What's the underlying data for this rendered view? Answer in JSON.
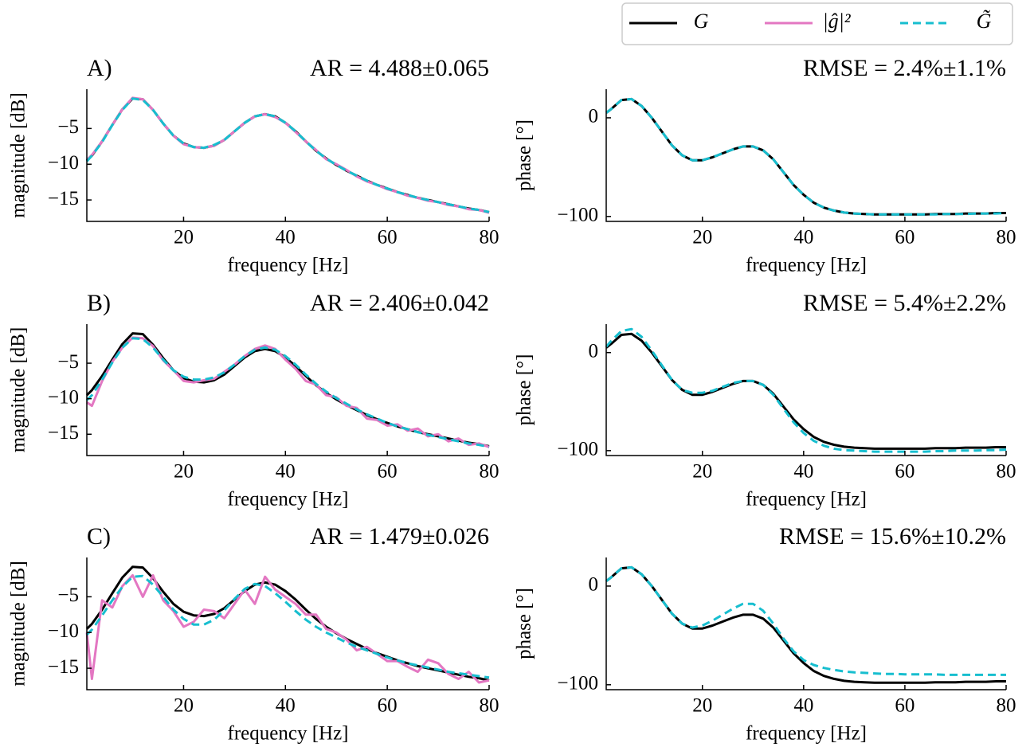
{
  "legend": [
    {
      "name": "G",
      "color": "#000000",
      "dash": "none"
    },
    {
      "name": "|ĝ|²",
      "color": "#e377c2",
      "dash": "none"
    },
    {
      "name": "G̃",
      "color": "#17becf",
      "dash": "10 6"
    }
  ],
  "chart_data": [
    {
      "type": "line",
      "label": "A)",
      "title": "AR = 4.488±0.065",
      "xlabel": "frequency [Hz]",
      "ylabel": "magnitude [dB]",
      "xlim": [
        1,
        80
      ],
      "ylim": [
        -18,
        0.5
      ],
      "xticks": [
        20,
        40,
        60,
        80
      ],
      "yticks": [
        {
          "value": -15,
          "label": "−15"
        },
        {
          "value": -10,
          "label": "−10"
        },
        {
          "value": -5,
          "label": "−5"
        }
      ],
      "x": [
        1,
        2,
        4,
        6,
        8,
        10,
        12,
        14,
        16,
        18,
        20,
        22,
        24,
        26,
        28,
        30,
        32,
        34,
        36,
        38,
        40,
        42,
        44,
        46,
        48,
        50,
        52,
        54,
        56,
        58,
        60,
        62,
        64,
        66,
        68,
        70,
        72,
        74,
        76,
        78,
        80
      ],
      "series": [
        {
          "color": "#000000",
          "dash": "none",
          "values": [
            -9.5,
            -8.8,
            -6.8,
            -4.5,
            -2.3,
            -0.8,
            -0.9,
            -2.4,
            -4.3,
            -6.0,
            -7.1,
            -7.6,
            -7.7,
            -7.4,
            -6.6,
            -5.4,
            -4.2,
            -3.3,
            -3.0,
            -3.3,
            -4.2,
            -5.4,
            -6.8,
            -8.1,
            -9.2,
            -10.1,
            -10.9,
            -11.6,
            -12.3,
            -12.9,
            -13.4,
            -13.9,
            -14.3,
            -14.7,
            -15.0,
            -15.3,
            -15.6,
            -15.9,
            -16.2,
            -16.4,
            -16.7
          ]
        },
        {
          "color": "#e377c2",
          "dash": "none",
          "values": [
            -9.4,
            -8.7,
            -6.8,
            -4.5,
            -2.3,
            -0.7,
            -0.9,
            -2.4,
            -4.3,
            -6.0,
            -7.2,
            -7.6,
            -7.7,
            -7.4,
            -6.6,
            -5.4,
            -4.2,
            -3.3,
            -3.0,
            -3.4,
            -4.2,
            -5.5,
            -6.8,
            -8.0,
            -9.3,
            -10.0,
            -10.8,
            -11.7,
            -12.4,
            -12.9,
            -13.5,
            -13.9,
            -14.4,
            -14.7,
            -15.1,
            -15.3,
            -15.7,
            -15.9,
            -16.3,
            -16.4,
            -16.8
          ]
        },
        {
          "color": "#17becf",
          "dash": "10 6",
          "values": [
            -9.6,
            -8.8,
            -6.9,
            -4.5,
            -2.4,
            -0.8,
            -1.0,
            -2.4,
            -4.3,
            -6.0,
            -7.1,
            -7.6,
            -7.7,
            -7.3,
            -6.6,
            -5.4,
            -4.2,
            -3.3,
            -3.0,
            -3.3,
            -4.2,
            -5.4,
            -6.8,
            -8.1,
            -9.2,
            -10.1,
            -10.9,
            -11.6,
            -12.3,
            -12.9,
            -13.4,
            -13.9,
            -14.3,
            -14.7,
            -15.0,
            -15.3,
            -15.6,
            -15.9,
            -16.2,
            -16.4,
            -16.7
          ]
        }
      ]
    },
    {
      "type": "line",
      "title": "RMSE = 2.4%±1.1%",
      "xlabel": "frequency [Hz]",
      "ylabel": "phase [°]",
      "xlim": [
        1,
        80
      ],
      "ylim": [
        -105,
        29
      ],
      "xticks": [
        20,
        40,
        60,
        80
      ],
      "yticks": [
        {
          "value": -100,
          "label": "−100"
        },
        0
      ],
      "x": [
        1,
        2,
        4,
        6,
        8,
        10,
        12,
        14,
        16,
        18,
        20,
        22,
        24,
        26,
        28,
        30,
        32,
        34,
        36,
        38,
        40,
        42,
        44,
        46,
        48,
        50,
        52,
        54,
        56,
        58,
        60,
        62,
        64,
        66,
        68,
        70,
        72,
        74,
        76,
        78,
        80
      ],
      "series": [
        {
          "color": "#000000",
          "dash": "none",
          "values": [
            5,
            9,
            18,
            19,
            12,
            0,
            -14,
            -28,
            -38,
            -43,
            -43,
            -40,
            -36,
            -32,
            -29,
            -29,
            -33,
            -42,
            -55,
            -68,
            -78,
            -86,
            -91,
            -94,
            -96,
            -97,
            -97.5,
            -98,
            -98,
            -98,
            -98,
            -98,
            -98,
            -97.5,
            -97.5,
            -97.5,
            -97,
            -97,
            -97,
            -96.5,
            -96.5
          ]
        },
        {
          "color": "#17becf",
          "dash": "10 6",
          "values": [
            5,
            9,
            18,
            19,
            12,
            0,
            -14,
            -28,
            -38,
            -43,
            -43,
            -40,
            -36,
            -32,
            -29,
            -29,
            -33,
            -42,
            -55,
            -68,
            -78,
            -86,
            -91,
            -94,
            -96,
            -97,
            -97.5,
            -98,
            -98,
            -98,
            -98,
            -98,
            -98,
            -98,
            -97.5,
            -97.5,
            -97.5,
            -97,
            -97,
            -97,
            -96.5
          ]
        }
      ]
    },
    {
      "type": "line",
      "label": "B)",
      "title": "AR = 2.406±0.042",
      "xlabel": "frequency [Hz]",
      "ylabel": "magnitude [dB]",
      "xlim": [
        1,
        80
      ],
      "ylim": [
        -18,
        0.5
      ],
      "xticks": [
        20,
        40,
        60,
        80
      ],
      "yticks": [
        {
          "value": -15,
          "label": "−15"
        },
        {
          "value": -10,
          "label": "−10"
        },
        {
          "value": -5,
          "label": "−5"
        }
      ],
      "x": [
        1,
        2,
        4,
        6,
        8,
        10,
        12,
        14,
        16,
        18,
        20,
        22,
        24,
        26,
        28,
        30,
        32,
        34,
        36,
        38,
        40,
        42,
        44,
        46,
        48,
        50,
        52,
        54,
        56,
        58,
        60,
        62,
        64,
        66,
        68,
        70,
        72,
        74,
        76,
        78,
        80
      ],
      "series": [
        {
          "color": "#000000",
          "dash": "none",
          "values": [
            -9.5,
            -8.8,
            -6.8,
            -4.5,
            -2.3,
            -0.8,
            -0.9,
            -2.4,
            -4.3,
            -6.0,
            -7.1,
            -7.6,
            -7.7,
            -7.4,
            -6.6,
            -5.4,
            -4.2,
            -3.3,
            -3.0,
            -3.3,
            -4.2,
            -5.4,
            -6.8,
            -8.1,
            -9.2,
            -10.1,
            -10.9,
            -11.6,
            -12.3,
            -12.9,
            -13.4,
            -13.9,
            -14.3,
            -14.7,
            -15.0,
            -15.3,
            -15.6,
            -15.9,
            -16.2,
            -16.4,
            -16.7
          ]
        },
        {
          "color": "#e377c2",
          "dash": "none",
          "values": [
            -10.5,
            -11.0,
            -7.5,
            -4.8,
            -2.8,
            -1.4,
            -1.5,
            -2.6,
            -4.6,
            -6.0,
            -7.5,
            -7.7,
            -7.4,
            -7.2,
            -6.2,
            -5.2,
            -4.0,
            -3.0,
            -2.5,
            -3.0,
            -4.5,
            -5.8,
            -7.5,
            -8.0,
            -9.5,
            -9.8,
            -11.0,
            -11.3,
            -12.8,
            -13.0,
            -13.8,
            -13.6,
            -14.5,
            -14.2,
            -15.3,
            -15.0,
            -16.0,
            -15.6,
            -16.5,
            -16.3,
            -16.8
          ]
        },
        {
          "color": "#17becf",
          "dash": "10 6",
          "values": [
            -10.2,
            -9.5,
            -7.3,
            -4.9,
            -2.8,
            -1.5,
            -1.6,
            -2.8,
            -4.5,
            -6.0,
            -6.9,
            -7.3,
            -7.3,
            -7.0,
            -6.3,
            -5.2,
            -4.0,
            -3.1,
            -2.8,
            -3.1,
            -4.0,
            -5.2,
            -6.6,
            -7.9,
            -9.0,
            -9.9,
            -10.7,
            -11.5,
            -12.2,
            -12.8,
            -13.4,
            -13.9,
            -14.3,
            -14.7,
            -15.1,
            -15.4,
            -15.7,
            -16.0,
            -16.3,
            -16.5,
            -16.8
          ]
        }
      ]
    },
    {
      "type": "line",
      "title": "RMSE = 5.4%±2.2%",
      "xlabel": "frequency [Hz]",
      "ylabel": "phase [°]",
      "xlim": [
        1,
        80
      ],
      "ylim": [
        -105,
        29
      ],
      "xticks": [
        20,
        40,
        60,
        80
      ],
      "yticks": [
        {
          "value": -100,
          "label": "−100"
        },
        0
      ],
      "x": [
        1,
        2,
        4,
        6,
        8,
        10,
        12,
        14,
        16,
        18,
        20,
        22,
        24,
        26,
        28,
        30,
        32,
        34,
        36,
        38,
        40,
        42,
        44,
        46,
        48,
        50,
        52,
        54,
        56,
        58,
        60,
        62,
        64,
        66,
        68,
        70,
        72,
        74,
        76,
        78,
        80
      ],
      "series": [
        {
          "color": "#000000",
          "dash": "none",
          "values": [
            5,
            9,
            18,
            19,
            12,
            0,
            -14,
            -28,
            -38,
            -43,
            -43,
            -40,
            -36,
            -32,
            -29,
            -29,
            -33,
            -42,
            -55,
            -68,
            -78,
            -86,
            -91,
            -94,
            -96,
            -97,
            -97.5,
            -98,
            -98,
            -98,
            -98,
            -98,
            -98,
            -97.5,
            -97.5,
            -97.5,
            -97,
            -97,
            -97,
            -96.5,
            -96.5
          ]
        },
        {
          "color": "#17becf",
          "dash": "10 6",
          "values": [
            6,
            12,
            22,
            24,
            16,
            2,
            -13,
            -28,
            -38,
            -41,
            -41,
            -39,
            -35,
            -31,
            -29,
            -29,
            -33,
            -43,
            -57,
            -71,
            -82,
            -90,
            -95,
            -98,
            -99.5,
            -100,
            -100.5,
            -101,
            -101,
            -101,
            -101,
            -101,
            -101,
            -100.5,
            -100.5,
            -100,
            -100,
            -100,
            -99.5,
            -99.5,
            -99
          ]
        }
      ]
    },
    {
      "type": "line",
      "label": "C)",
      "title": "AR = 1.479±0.026",
      "xlabel": "frequency [Hz]",
      "ylabel": "magnitude [dB]",
      "xlim": [
        1,
        80
      ],
      "ylim": [
        -18,
        0.5
      ],
      "xticks": [
        20,
        40,
        60,
        80
      ],
      "yticks": [
        {
          "value": -15,
          "label": "−15"
        },
        {
          "value": -10,
          "label": "−10"
        },
        {
          "value": -5,
          "label": "−5"
        }
      ],
      "x": [
        1,
        2,
        4,
        6,
        8,
        10,
        12,
        14,
        16,
        18,
        20,
        22,
        24,
        26,
        28,
        30,
        32,
        34,
        36,
        38,
        40,
        42,
        44,
        46,
        48,
        50,
        52,
        54,
        56,
        58,
        60,
        62,
        64,
        66,
        68,
        70,
        72,
        74,
        76,
        78,
        80
      ],
      "series": [
        {
          "color": "#000000",
          "dash": "none",
          "values": [
            -9.5,
            -8.8,
            -6.8,
            -4.5,
            -2.3,
            -0.8,
            -0.9,
            -2.4,
            -4.3,
            -6.0,
            -7.1,
            -7.6,
            -7.7,
            -7.4,
            -6.6,
            -5.4,
            -4.2,
            -3.3,
            -3.0,
            -3.3,
            -4.2,
            -5.4,
            -6.8,
            -8.1,
            -9.2,
            -10.1,
            -10.9,
            -11.6,
            -12.3,
            -12.9,
            -13.4,
            -13.9,
            -14.3,
            -14.7,
            -15.0,
            -15.3,
            -15.6,
            -15.9,
            -16.2,
            -16.4,
            -16.7
          ]
        },
        {
          "color": "#e377c2",
          "dash": "none",
          "values": [
            -10.0,
            -16.5,
            -5.5,
            -6.5,
            -3.5,
            -2.0,
            -5.0,
            -2.0,
            -5.5,
            -7.0,
            -9.2,
            -8.5,
            -6.8,
            -7.0,
            -8.0,
            -6.0,
            -4.0,
            -6.0,
            -2.2,
            -4.0,
            -5.0,
            -6.0,
            -7.5,
            -7.5,
            -9.5,
            -10.0,
            -11.0,
            -12.5,
            -12.0,
            -13.0,
            -14.0,
            -14.0,
            -14.8,
            -15.5,
            -13.8,
            -14.3,
            -15.8,
            -16.5,
            -15.5,
            -17.0,
            -16.7
          ]
        },
        {
          "color": "#17becf",
          "dash": "10 6",
          "values": [
            -10.3,
            -9.6,
            -7.6,
            -5.5,
            -3.6,
            -2.2,
            -2.1,
            -3.3,
            -5.0,
            -6.8,
            -8.1,
            -8.9,
            -8.9,
            -8.2,
            -6.9,
            -5.3,
            -3.9,
            -3.2,
            -3.5,
            -4.5,
            -5.7,
            -7.0,
            -8.2,
            -9.2,
            -10.0,
            -10.7,
            -11.4,
            -12.0,
            -12.5,
            -13.0,
            -13.5,
            -13.9,
            -14.3,
            -14.6,
            -14.9,
            -15.2,
            -15.5,
            -15.7,
            -15.9,
            -16.1,
            -16.3
          ]
        }
      ]
    },
    {
      "type": "line",
      "title": "RMSE = 15.6%±10.2%",
      "xlabel": "frequency [Hz]",
      "ylabel": "phase [°]",
      "xlim": [
        1,
        80
      ],
      "ylim": [
        -105,
        29
      ],
      "xticks": [
        20,
        40,
        60,
        80
      ],
      "yticks": [
        {
          "value": -100,
          "label": "−100"
        },
        0
      ],
      "x": [
        1,
        2,
        4,
        6,
        8,
        10,
        12,
        14,
        16,
        18,
        20,
        22,
        24,
        26,
        28,
        30,
        32,
        34,
        36,
        38,
        40,
        42,
        44,
        46,
        48,
        50,
        52,
        54,
        56,
        58,
        60,
        62,
        64,
        66,
        68,
        70,
        72,
        74,
        76,
        78,
        80
      ],
      "series": [
        {
          "color": "#000000",
          "dash": "none",
          "values": [
            5,
            9,
            18,
            19,
            12,
            0,
            -14,
            -28,
            -38,
            -43,
            -43,
            -40,
            -36,
            -32,
            -29,
            -29,
            -33,
            -42,
            -55,
            -68,
            -78,
            -86,
            -91,
            -94,
            -96,
            -97,
            -97.5,
            -98,
            -98,
            -98,
            -98,
            -98,
            -98,
            -97.5,
            -97.5,
            -97.5,
            -97,
            -97,
            -97,
            -96.5,
            -96.5
          ]
        },
        {
          "color": "#17becf",
          "dash": "10 6",
          "values": [
            5,
            9,
            18,
            19,
            12,
            0,
            -14,
            -28,
            -38,
            -42,
            -40,
            -35,
            -29,
            -23,
            -18,
            -18,
            -25,
            -38,
            -53,
            -66,
            -75,
            -80,
            -83,
            -85,
            -86.5,
            -87.5,
            -88,
            -88.5,
            -89,
            -89,
            -89.5,
            -89.5,
            -89.5,
            -89.5,
            -90,
            -90,
            -90,
            -90,
            -90,
            -90,
            -90
          ]
        }
      ]
    }
  ]
}
